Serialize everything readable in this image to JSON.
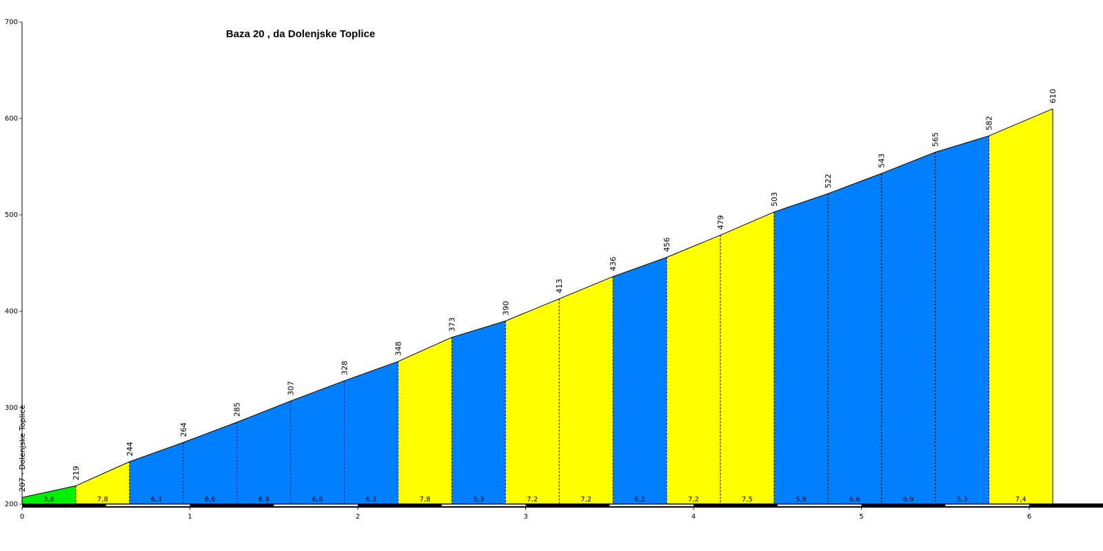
{
  "chart_data": {
    "type": "area",
    "title": "Baza 20 , da Dolenjske Toplice",
    "xlabel": "",
    "ylabel": "",
    "xlim": [
      0,
      6.45
    ],
    "ylim": [
      200,
      700
    ],
    "x_ticks": [
      0,
      1,
      2,
      3,
      4,
      5,
      6
    ],
    "y_ticks": [
      200,
      300,
      400,
      500,
      600,
      700
    ],
    "start_label": "207 - Dolenjske Toplice",
    "points": [
      {
        "x": 0.0,
        "elev": 207
      },
      {
        "x": 0.32,
        "elev": 219
      },
      {
        "x": 0.64,
        "elev": 244
      },
      {
        "x": 0.96,
        "elev": 264
      },
      {
        "x": 1.28,
        "elev": 285
      },
      {
        "x": 1.6,
        "elev": 307
      },
      {
        "x": 1.92,
        "elev": 328
      },
      {
        "x": 2.24,
        "elev": 348
      },
      {
        "x": 2.56,
        "elev": 373
      },
      {
        "x": 2.88,
        "elev": 390
      },
      {
        "x": 3.2,
        "elev": 413
      },
      {
        "x": 3.52,
        "elev": 436
      },
      {
        "x": 3.84,
        "elev": 456
      },
      {
        "x": 4.16,
        "elev": 479
      },
      {
        "x": 4.48,
        "elev": 503
      },
      {
        "x": 4.8,
        "elev": 522
      },
      {
        "x": 5.12,
        "elev": 543
      },
      {
        "x": 5.44,
        "elev": 565
      },
      {
        "x": 5.76,
        "elev": 582
      },
      {
        "x": 6.14,
        "elev": 610
      }
    ],
    "segments": [
      {
        "gradient": "3,8",
        "color": "#00ee00"
      },
      {
        "gradient": "7,8",
        "color": "#ffff00"
      },
      {
        "gradient": "6,3",
        "color": "#0080ff"
      },
      {
        "gradient": "6,6",
        "color": "#0080ff"
      },
      {
        "gradient": "6,9",
        "color": "#0080ff"
      },
      {
        "gradient": "6,6",
        "color": "#0080ff"
      },
      {
        "gradient": "6,2",
        "color": "#0080ff"
      },
      {
        "gradient": "7,8",
        "color": "#ffff00"
      },
      {
        "gradient": "5,3",
        "color": "#0080ff"
      },
      {
        "gradient": "7,2",
        "color": "#ffff00"
      },
      {
        "gradient": "7,2",
        "color": "#ffff00"
      },
      {
        "gradient": "6,2",
        "color": "#0080ff"
      },
      {
        "gradient": "7,2",
        "color": "#ffff00"
      },
      {
        "gradient": "7,5",
        "color": "#ffff00"
      },
      {
        "gradient": "5,9",
        "color": "#0080ff"
      },
      {
        "gradient": "6,6",
        "color": "#0080ff"
      },
      {
        "gradient": "6,9",
        "color": "#0080ff"
      },
      {
        "gradient": "5,3",
        "color": "#0080ff"
      },
      {
        "gradient": "7,4",
        "color": "#ffff00"
      }
    ],
    "colors": {
      "green": "#00ee00",
      "yellow": "#ffff00",
      "blue": "#0080ff",
      "axis": "#000000",
      "y_tick_mark": "#cc0000"
    }
  }
}
